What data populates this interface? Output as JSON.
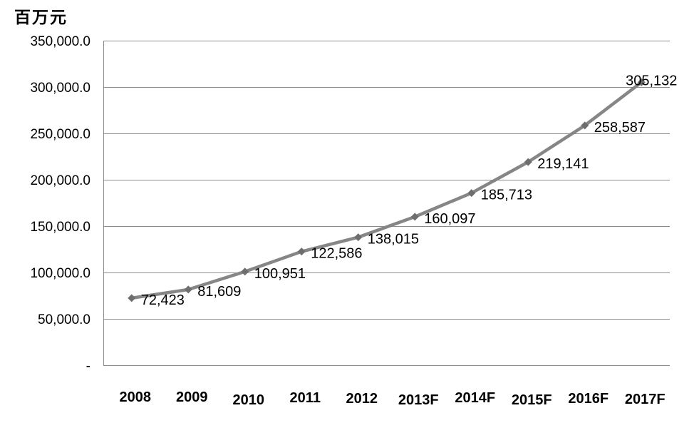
{
  "chart_data": {
    "type": "line",
    "title": "",
    "unit_label": "百万元",
    "categories": [
      "2008",
      "2009",
      "2010",
      "2011",
      "2012",
      "2013F",
      "2014F",
      "2015F",
      "2016F",
      "2017F"
    ],
    "series": [
      {
        "name": "",
        "values": [
          72423,
          81609,
          100951,
          122586,
          138015,
          160097,
          185713,
          219141,
          258587,
          305132
        ],
        "data_labels": [
          "72,423",
          "81,609",
          "100,951",
          "122,586",
          "138,015",
          "160,097",
          "185,713",
          "219,141",
          "258,587",
          "305,132"
        ]
      }
    ],
    "y_ticks": [
      {
        "value": 0,
        "label": "-"
      },
      {
        "value": 50000,
        "label": "50,000.0"
      },
      {
        "value": 100000,
        "label": "100,000.0"
      },
      {
        "value": 150000,
        "label": "150,000.0"
      },
      {
        "value": 200000,
        "label": "200,000.0"
      },
      {
        "value": 250000,
        "label": "250,000.0"
      },
      {
        "value": 300000,
        "label": "300,000.0"
      },
      {
        "value": 350000,
        "label": "350,000.0"
      }
    ],
    "ylim": [
      0,
      350000
    ],
    "xlabel": "",
    "ylabel": "百万元",
    "grid": true,
    "legend": "none",
    "colors": {
      "line": "#868686",
      "marker": "#6e6e6e",
      "gridline": "#8c8c8c",
      "text": "#000000",
      "background": "#ffffff"
    }
  }
}
